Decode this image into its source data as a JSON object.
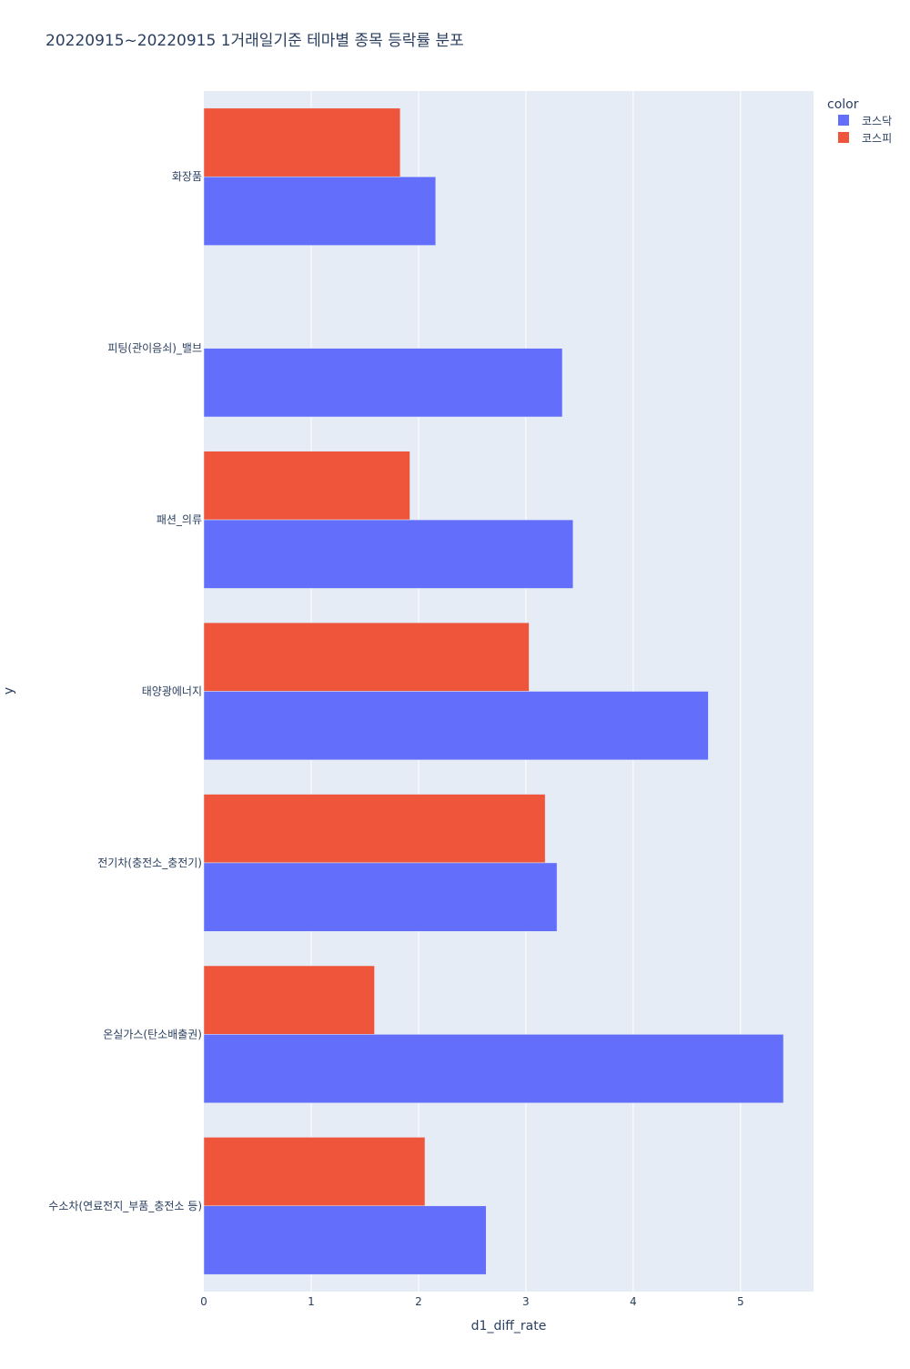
{
  "chart_data": {
    "type": "bar",
    "orientation": "horizontal",
    "title": "20220915~20220915 1거래일기준 테마별 종목 등락률 분포",
    "xlabel": "d1_diff_rate",
    "ylabel": "y",
    "xlim": [
      0,
      5.68
    ],
    "xticks": [
      0,
      1,
      2,
      3,
      4,
      5
    ],
    "grid": true,
    "legend_title": "color",
    "legend_position": "top-right",
    "categories": [
      "화장품",
      "피팅(관이음쇠)_밸브",
      "패션_의류",
      "태양광에너지",
      "전기차(충전소_충전기)",
      "온실가스(탄소배출권)",
      "수소차(연료전지_부품_충전소 등)"
    ],
    "series": [
      {
        "name": "코스닥",
        "color": "#636efa",
        "values": [
          2.16,
          3.34,
          3.44,
          4.7,
          3.29,
          5.4,
          2.63
        ]
      },
      {
        "name": "코스피",
        "color": "#ef553b",
        "values": [
          1.83,
          null,
          1.92,
          3.03,
          3.18,
          1.59,
          2.06
        ]
      }
    ]
  }
}
